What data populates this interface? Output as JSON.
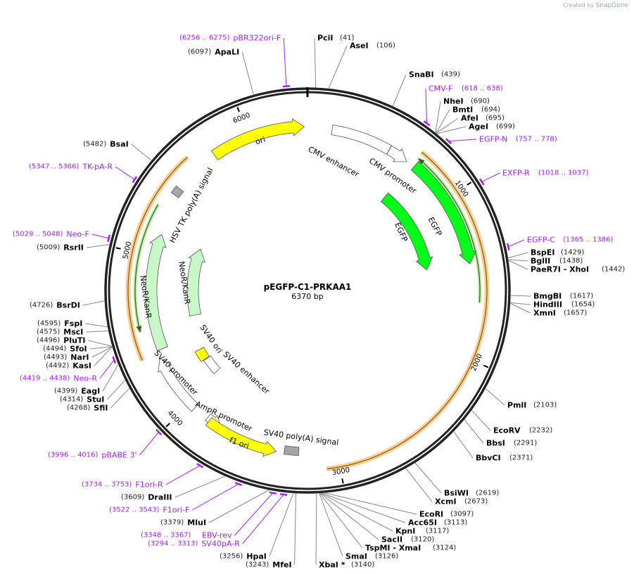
{
  "badge": {
    "created_by": "Created by",
    "brand": "SnapGene"
  },
  "plasmid": {
    "name": "pEGFP-C1-PRKAA1",
    "length_label": "6370 bp",
    "length_bp": 6370
  },
  "ticks": [
    "1000",
    "2000",
    "3000",
    "4000",
    "5000",
    "6000"
  ],
  "sites": [
    {
      "name": "PciI",
      "num": "(41)",
      "pos": 41,
      "type": "enzyme"
    },
    {
      "name": "AseI",
      "num": "(106)",
      "pos": 106,
      "type": "enzyme"
    },
    {
      "name": "SnaBI",
      "num": "(439)",
      "pos": 439,
      "type": "enzyme"
    },
    {
      "name": "CMV-F",
      "num": "(618 .. 638)",
      "pos": 628,
      "type": "primer"
    },
    {
      "name": "NheI",
      "num": "(690)",
      "pos": 690,
      "type": "enzyme"
    },
    {
      "name": "BmtI",
      "num": "(694)",
      "pos": 694,
      "type": "enzyme"
    },
    {
      "name": "AfeI",
      "num": "(695)",
      "pos": 695,
      "type": "enzyme"
    },
    {
      "name": "AgeI",
      "num": "(699)",
      "pos": 699,
      "type": "enzyme"
    },
    {
      "name": "EGFP-N",
      "num": "(757 .. 778)",
      "pos": 767,
      "type": "primer"
    },
    {
      "name": "EXFP-R",
      "num": "(1018 .. 1037)",
      "pos": 1027,
      "type": "primer"
    },
    {
      "name": "EGFP-C",
      "num": "(1365 .. 1386)",
      "pos": 1375,
      "type": "primer"
    },
    {
      "name": "BspEI",
      "num": "(1429)",
      "pos": 1429,
      "type": "enzyme"
    },
    {
      "name": "BglII",
      "num": "(1438)",
      "pos": 1438,
      "type": "enzyme"
    },
    {
      "name": "PaeR7I - XhoI",
      "num": "(1442)",
      "pos": 1442,
      "type": "enzyme"
    },
    {
      "name": "BmgBI",
      "num": "(1617)",
      "pos": 1617,
      "type": "enzyme"
    },
    {
      "name": "HindIII",
      "num": "(1654)",
      "pos": 1654,
      "type": "enzyme"
    },
    {
      "name": "XmnI",
      "num": "(1657)",
      "pos": 1657,
      "type": "enzyme"
    },
    {
      "name": "PmlI",
      "num": "(2103)",
      "pos": 2103,
      "type": "enzyme"
    },
    {
      "name": "EcoRV",
      "num": "(2232)",
      "pos": 2232,
      "type": "enzyme"
    },
    {
      "name": "BbsI",
      "num": "(2291)",
      "pos": 2291,
      "type": "enzyme"
    },
    {
      "name": "BbvCI",
      "num": "(2371)",
      "pos": 2371,
      "type": "enzyme"
    },
    {
      "name": "BsiWI",
      "num": "(2619)",
      "pos": 2619,
      "type": "enzyme"
    },
    {
      "name": "XcmI",
      "num": "(2673)",
      "pos": 2673,
      "type": "enzyme"
    },
    {
      "name": "EcoRI",
      "num": "(3097)",
      "pos": 3097,
      "type": "enzyme"
    },
    {
      "name": "Acc65I",
      "num": "(3113)",
      "pos": 3113,
      "type": "enzyme"
    },
    {
      "name": "KpnI",
      "num": "(3117)",
      "pos": 3117,
      "type": "enzyme"
    },
    {
      "name": "SacII",
      "num": "(3120)",
      "pos": 3120,
      "type": "enzyme"
    },
    {
      "name": "TspMI - XmaI",
      "num": "(3124)",
      "pos": 3124,
      "type": "enzyme"
    },
    {
      "name": "SmaI",
      "num": "(3126)",
      "pos": 3126,
      "type": "enzyme"
    },
    {
      "name": "XbaI *",
      "num": "(3140)",
      "pos": 3140,
      "type": "enzyme"
    },
    {
      "name": "HpaI",
      "num": "(3256)",
      "pos": 3256,
      "type": "enzyme"
    },
    {
      "name": "MfeI",
      "num": "(3243)",
      "pos": 3243,
      "type": "enzyme"
    },
    {
      "name": "SV40pA-R",
      "num": "(3294 .. 3313)",
      "pos": 3303,
      "type": "primer"
    },
    {
      "name": "EBV-rev",
      "num": "(3348 .. 3367)",
      "pos": 3357,
      "type": "primer"
    },
    {
      "name": "MluI",
      "num": "(3379)",
      "pos": 3379,
      "type": "enzyme"
    },
    {
      "name": "F1ori-F",
      "num": "(3522 .. 3543)",
      "pos": 3532,
      "type": "primer"
    },
    {
      "name": "DraIII",
      "num": "(3609)",
      "pos": 3609,
      "type": "enzyme"
    },
    {
      "name": "F1ori-R",
      "num": "(3734 .. 3753)",
      "pos": 3743,
      "type": "primer"
    },
    {
      "name": "pBABE 3'",
      "num": "(3996 .. 4016)",
      "pos": 4006,
      "type": "primer"
    },
    {
      "name": "SfiI",
      "num": "(4268)",
      "pos": 4268,
      "type": "enzyme"
    },
    {
      "name": "StuI",
      "num": "(4314)",
      "pos": 4314,
      "type": "enzyme"
    },
    {
      "name": "EagI",
      "num": "(4399)",
      "pos": 4399,
      "type": "enzyme"
    },
    {
      "name": "Neo-R",
      "num": "(4419 .. 4438)",
      "pos": 4428,
      "type": "primer"
    },
    {
      "name": "KasI",
      "num": "(4492)",
      "pos": 4492,
      "type": "enzyme"
    },
    {
      "name": "NarI",
      "num": "(4493)",
      "pos": 4493,
      "type": "enzyme"
    },
    {
      "name": "SfoI",
      "num": "(4494)",
      "pos": 4494,
      "type": "enzyme"
    },
    {
      "name": "PluTI",
      "num": "(4496)",
      "pos": 4496,
      "type": "enzyme"
    },
    {
      "name": "MscI",
      "num": "(4575)",
      "pos": 4575,
      "type": "enzyme"
    },
    {
      "name": "FspI",
      "num": "(4595)",
      "pos": 4595,
      "type": "enzyme"
    },
    {
      "name": "BsrDI",
      "num": "(4726)",
      "pos": 4726,
      "type": "enzyme"
    },
    {
      "name": "RsrII",
      "num": "(5009)",
      "pos": 5009,
      "type": "enzyme"
    },
    {
      "name": "Neo-F",
      "num": "(5029 .. 5048)",
      "pos": 5038,
      "type": "primer"
    },
    {
      "name": "TK-pA-R",
      "num": "(5347 .. 5366)",
      "pos": 5356,
      "type": "primer"
    },
    {
      "name": "BsaI",
      "num": "(5482)",
      "pos": 5482,
      "type": "enzyme"
    },
    {
      "name": "ApaLI",
      "num": "(6097)",
      "pos": 6097,
      "type": "enzyme"
    },
    {
      "name": "pBR322ori-F",
      "num": "(6256 .. 6275)",
      "pos": 6265,
      "type": "primer"
    }
  ],
  "features": [
    {
      "name": "ori",
      "start": 5760,
      "end": 6350,
      "dir": 1,
      "color": "#ffff00"
    },
    {
      "name": "CMV enhancer",
      "start": 154,
      "end": 533,
      "dir": 0,
      "color": "#ffffff"
    },
    {
      "name": "CMV promoter",
      "start": 534,
      "end": 665,
      "dir": 1,
      "color": "#ffffff"
    },
    {
      "name": "EGFP",
      "start": 720,
      "end": 1428,
      "dir": 1,
      "color": "#00ff18"
    },
    {
      "name": "EGFP",
      "start": 700,
      "end": 1420,
      "dir": 1,
      "color": "#00ff18"
    },
    {
      "name": "NeoR/KanR",
      "start": 4390,
      "end": 5150,
      "dir": 1,
      "color": "#c8f8c8"
    },
    {
      "name": "NeoR/KanR",
      "start": 4560,
      "end": 5150,
      "dir": 1,
      "color": "#c8f8c8"
    },
    {
      "name": "HSV TK poly(A) signal",
      "start": 5410,
      "end": 5460,
      "dir": 0,
      "color": "#a2a7ae"
    },
    {
      "name": "SV40 ori",
      "start": 4180,
      "end": 4270,
      "dir": 0,
      "color": "#ffff00"
    },
    {
      "name": "SV40 enhancer",
      "start": 4040,
      "end": 4175,
      "dir": 0,
      "color": "#ffffff"
    },
    {
      "name": "SV40 promoter",
      "start": 3960,
      "end": 4340,
      "dir": 1,
      "color": "#ffffff"
    },
    {
      "name": "AmpR promoter",
      "start": 3760,
      "end": 3860,
      "dir": -1,
      "color": "#ffffff"
    },
    {
      "name": "f1 ori",
      "start": 3380,
      "end": 3840,
      "dir": -1,
      "color": "#ffff00"
    },
    {
      "name": "SV40 poly(A) signal",
      "start": 3240,
      "end": 3330,
      "dir": 0,
      "color": "#a2a7ae"
    }
  ],
  "colors": {
    "primer": "#a020f0",
    "backbone": "#222222",
    "orf": "#f9c983",
    "orf_line": "#4a7a2a"
  }
}
